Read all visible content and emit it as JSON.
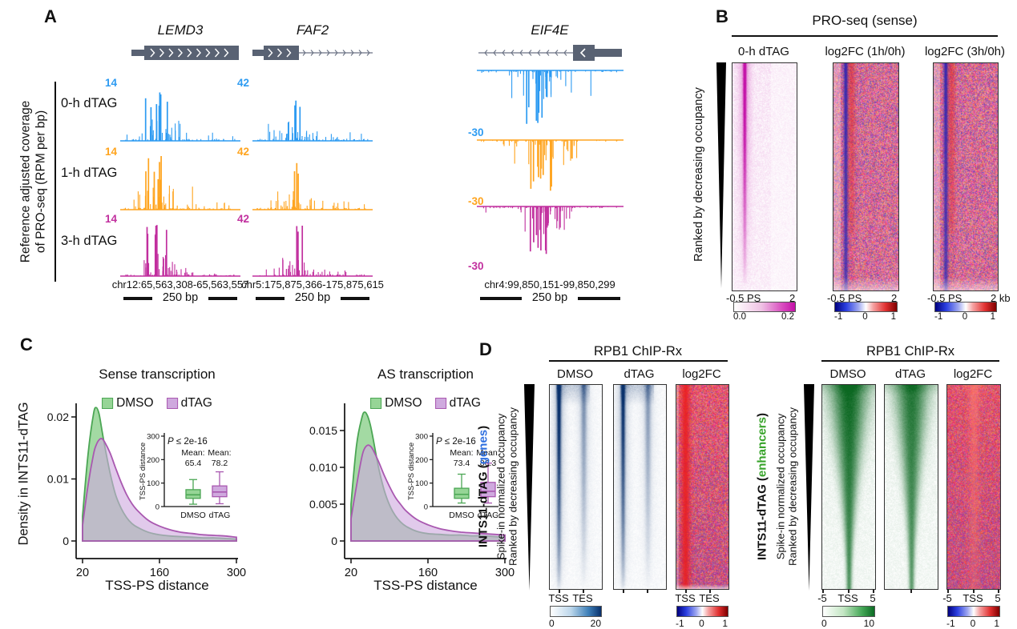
{
  "colors": {
    "track_blue": "#2D9BF2",
    "track_orange": "#FFA41E",
    "track_magenta": "#C12F9E",
    "gene_gray": "#596273",
    "heat_magenta": "#C411A8",
    "dmso_fill": "#96D596",
    "dmso_stroke": "#4BA654",
    "dtag_fill": "#CFA9DE",
    "dtag_stroke": "#A958B0",
    "genes_blue": "#2E6FE0",
    "enhancers_green": "#37A32A"
  },
  "figure": {
    "panel_a": {
      "label": "A",
      "y_axis_label": "Reference adjusted coverage\nof PRO-seq (RPM per bp)",
      "row_labels": [
        "0-h dTAG",
        "1-h dTAG",
        "3-h dTAG"
      ],
      "genes": [
        {
          "name": "LEMD3",
          "scale_label": "14",
          "coords": "chr12:65,563,308-65,563,557",
          "scale_bar": "250 bp"
        },
        {
          "name": "FAF2",
          "scale_label": "42",
          "coords": "chr5:175,875,366-175,875,615",
          "scale_bar": "250 bp"
        },
        {
          "name": "EIF4E",
          "scale_label": "-30",
          "coords": "chr4:99,850,151-99,850,299",
          "scale_bar": "250 bp"
        }
      ]
    },
    "panel_b": {
      "label": "B",
      "title": "PRO-seq (sense)",
      "side_label": "Ranked by decreasing occupancy",
      "columns": [
        "0-h dTAG",
        "log2FC (1h/0h)",
        "log2FC (3h/0h)"
      ],
      "x_left": [
        "-0.5 PS",
        "-0.5 PS",
        "-0.5 PS"
      ],
      "x_right": [
        "2",
        "2",
        "2 kb"
      ],
      "cbar1": {
        "min": "0.0",
        "max": "0.2"
      },
      "cbar_div": [
        "-1",
        "0",
        "1"
      ]
    },
    "panel_c": {
      "label": "C",
      "y_axis_label": "Density in INTS11-dTAG",
      "x_axis_label": "TSS-PS distance",
      "legend": [
        "DMSO",
        "dTAG"
      ],
      "plots": [
        {
          "title": "Sense transcription",
          "y_ticks": [
            "0",
            "0.01",
            "0.02"
          ],
          "y_tick_vals": [
            0,
            0.01,
            0.02
          ],
          "x_ticks": [
            "20",
            "160",
            "300"
          ],
          "x_tick_vals": [
            20,
            160,
            300
          ],
          "inset": {
            "y_label": "TSS-PS distance",
            "y_ticks": [
              "0",
              "100",
              "200",
              "300"
            ],
            "y_tick_vals": [
              0,
              100,
              200,
              300
            ],
            "p_italic": "P",
            "p_rest": " ≤ 2e-16",
            "mean_word": "Mean:",
            "means": [
              "65.4",
              "78.2"
            ],
            "categories": [
              "DMSO",
              "dTAG"
            ]
          }
        },
        {
          "title": "AS transcription",
          "y_ticks": [
            "0",
            "0.005",
            "0.010",
            "0.015"
          ],
          "y_tick_vals": [
            0,
            0.005,
            0.01,
            0.015
          ],
          "x_ticks": [
            "20",
            "160",
            "300"
          ],
          "x_tick_vals": [
            20,
            160,
            300
          ],
          "inset": {
            "y_label": "TSS-PS distance",
            "y_ticks": [
              "0",
              "100",
              "200",
              "300"
            ],
            "y_tick_vals": [
              0,
              100,
              200,
              300
            ],
            "p_italic": "P",
            "p_rest": " ≤ 2e-16",
            "mean_word": "Mean:",
            "means": [
              "73.4",
              "86.3"
            ],
            "categories": [
              "DMSO",
              "dTAG"
            ]
          }
        }
      ]
    },
    "panel_d": {
      "label": "D",
      "groups": [
        {
          "title": "RPB1 ChIP-Rx",
          "prefix": "INTS11-dTAG (",
          "target": "genes",
          "suffix": ")",
          "occupancy_label": "Spike-in normalized occupancy",
          "rank_label": "Ranked by decreasing occupancy",
          "columns": [
            "DMSO",
            "dTAG",
            "log2FC"
          ],
          "x_labels": [
            "TSS",
            "TES"
          ],
          "cbar_main": {
            "min": "0",
            "max": "20",
            "scheme": "blue"
          },
          "cbar_fc": [
            "-1",
            "0",
            "1"
          ]
        },
        {
          "title": "RPB1 ChIP-Rx",
          "prefix": "INTS11-dTAG (",
          "target": "enhancers",
          "suffix": ")",
          "occupancy_label": "Spike-in normalized occupancy",
          "rank_label": "Ranked by decreasing occupancy",
          "columns": [
            "DMSO",
            "dTAG",
            "log2FC"
          ],
          "x_labels": [
            "-5",
            "TSS",
            "5"
          ],
          "cbar_main": {
            "min": "0",
            "max": "10",
            "scheme": "green"
          },
          "cbar_fc": [
            "-1",
            "0",
            "1"
          ]
        }
      ]
    }
  },
  "chart_data": [
    {
      "id": "proseq_example_tracks",
      "type": "area",
      "title": "Reference adjusted coverage of PRO-seq (RPM per bp)",
      "rows": [
        "0-h dTAG",
        "1-h dTAG",
        "3-h dTAG"
      ],
      "genes": [
        {
          "name": "LEMD3",
          "ymax": 14,
          "direction": "up",
          "region": "chr12:65,563,308-65,563,557",
          "scale_bar_bp": 250,
          "clusters": [
            [
              0.3,
              0.045,
              7,
              0.55,
              1.0
            ],
            [
              0.35,
              0.1,
              24,
              0.06,
              0.45
            ],
            [
              0.56,
              0.17,
              16,
              0.02,
              0.16
            ]
          ]
        },
        {
          "name": "FAF2",
          "ymax": 42,
          "direction": "up",
          "region": "chr5:175,875,366-175,875,615",
          "scale_bar_bp": 250,
          "clusters": [
            [
              0.38,
              0.018,
              3,
              0.6,
              1.0
            ],
            [
              0.3,
              0.09,
              18,
              0.05,
              0.35
            ],
            [
              0.6,
              0.2,
              18,
              0.02,
              0.18
            ]
          ]
        },
        {
          "name": "EIF4E",
          "ymin": -30,
          "direction": "down",
          "region": "chr4:99,850,151-99,850,299",
          "scale_bar_bp": 250,
          "clusters": [
            [
              0.43,
              0.05,
              9,
              0.45,
              1.0
            ],
            [
              0.5,
              0.12,
              20,
              0.08,
              0.5
            ],
            [
              0.3,
              0.18,
              12,
              0.02,
              0.12
            ]
          ]
        }
      ]
    },
    {
      "id": "sense_density",
      "type": "area",
      "title": "Sense transcription",
      "xlabel": "TSS-PS distance",
      "ylabel": "Density in INTS11-dTAG",
      "xlim": [
        20,
        300
      ],
      "ylim": [
        0,
        0.022
      ],
      "x": [
        20,
        30,
        40,
        45,
        50,
        55,
        60,
        70,
        80,
        90,
        100,
        110,
        120,
        140,
        160,
        180,
        200,
        220,
        240,
        260,
        280,
        300
      ],
      "series": [
        {
          "name": "DMSO",
          "values": [
            0.004,
            0.014,
            0.0205,
            0.0215,
            0.0205,
            0.018,
            0.0155,
            0.011,
            0.0075,
            0.0053,
            0.0038,
            0.0028,
            0.0022,
            0.0014,
            0.001,
            0.0008,
            0.0007,
            0.0006,
            0.0005,
            0.0005,
            0.0004,
            0.0003
          ]
        },
        {
          "name": "dTAG",
          "values": [
            0.0025,
            0.009,
            0.014,
            0.0155,
            0.0163,
            0.0165,
            0.016,
            0.0142,
            0.0118,
            0.0095,
            0.0075,
            0.006,
            0.0049,
            0.0033,
            0.0024,
            0.0018,
            0.0014,
            0.0012,
            0.001,
            0.0009,
            0.0008,
            0.0006
          ]
        }
      ]
    },
    {
      "id": "as_density",
      "type": "area",
      "title": "AS transcription",
      "xlabel": "TSS-PS distance",
      "ylabel": "Density in INTS11-dTAG",
      "xlim": [
        20,
        300
      ],
      "ylim": [
        0,
        0.0175
      ],
      "x": [
        20,
        30,
        40,
        45,
        50,
        55,
        60,
        70,
        80,
        90,
        100,
        110,
        120,
        140,
        160,
        180,
        200,
        220,
        240,
        260,
        280,
        300
      ],
      "series": [
        {
          "name": "DMSO",
          "values": [
            0.005,
            0.013,
            0.0168,
            0.0175,
            0.017,
            0.0158,
            0.014,
            0.01,
            0.007,
            0.0049,
            0.0035,
            0.0026,
            0.002,
            0.0013,
            0.001,
            0.0009,
            0.0008,
            0.0008,
            0.0007,
            0.0007,
            0.0006,
            0.0005
          ]
        },
        {
          "name": "dTAG",
          "values": [
            0.003,
            0.0075,
            0.0115,
            0.0126,
            0.013,
            0.0129,
            0.0124,
            0.0108,
            0.009,
            0.0074,
            0.006,
            0.005,
            0.0041,
            0.0029,
            0.0022,
            0.0017,
            0.0014,
            0.0012,
            0.0011,
            0.001,
            0.0009,
            0.0008
          ]
        }
      ]
    },
    {
      "id": "sense_inset_boxplot",
      "type": "boxplot",
      "p_value": "P ≤ 2e-16",
      "ylim": [
        0,
        300
      ],
      "ylabel": "TSS-PS distance",
      "categories": [
        "DMSO",
        "dTAG"
      ],
      "stats": [
        {
          "whislo": 10,
          "q1": 35,
          "med": 50,
          "q3": 72,
          "whishi": 115,
          "mean": 65.4
        },
        {
          "whislo": 12,
          "q1": 42,
          "med": 62,
          "q3": 88,
          "whishi": 148,
          "mean": 78.2
        }
      ]
    },
    {
      "id": "as_inset_boxplot",
      "type": "boxplot",
      "p_value": "P ≤ 2e-16",
      "ylim": [
        0,
        300
      ],
      "ylabel": "TSS-PS distance",
      "categories": [
        "DMSO",
        "dTAG"
      ],
      "stats": [
        {
          "whislo": 15,
          "q1": 35,
          "med": 52,
          "q3": 78,
          "whishi": 138,
          "mean": 73.4
        },
        {
          "whislo": 15,
          "q1": 42,
          "med": 65,
          "q3": 103,
          "whishi": 185,
          "mean": 86.3
        }
      ]
    },
    {
      "id": "proseq_sense_heatmaps",
      "type": "heatmap",
      "title": "PRO-seq (sense)",
      "side_label": "Ranked by decreasing occupancy",
      "maps": [
        {
          "name": "0-h dTAG",
          "x_axis": [
            "-0.5",
            "PS",
            "2"
          ],
          "color_scale": [
            0.0,
            0.2
          ],
          "scheme": "white-magenta"
        },
        {
          "name": "log2FC (1h/0h)",
          "x_axis": [
            "-0.5",
            "PS",
            "2"
          ],
          "color_scale": [
            -1,
            1
          ],
          "scheme": "blue-white-red"
        },
        {
          "name": "log2FC (3h/0h)",
          "x_axis": [
            "-0.5",
            "PS",
            "2 kb"
          ],
          "color_scale": [
            -1,
            1
          ],
          "scheme": "blue-white-red"
        }
      ]
    },
    {
      "id": "rpb1_chip_genes",
      "type": "heatmap",
      "title": "RPB1 ChIP-Rx",
      "target": "genes",
      "x_labels": [
        "TSS",
        "TES"
      ],
      "maps": [
        {
          "name": "DMSO",
          "color_scale": [
            0,
            20
          ],
          "scheme": "white-blue"
        },
        {
          "name": "dTAG",
          "color_scale": [
            0,
            20
          ],
          "scheme": "white-blue"
        },
        {
          "name": "log2FC",
          "color_scale": [
            -1,
            1
          ],
          "scheme": "blue-white-red"
        }
      ]
    },
    {
      "id": "rpb1_chip_enhancers",
      "type": "heatmap",
      "title": "RPB1 ChIP-Rx",
      "target": "enhancers",
      "x_labels": [
        "-5",
        "TSS",
        "5"
      ],
      "maps": [
        {
          "name": "DMSO",
          "color_scale": [
            0,
            10
          ],
          "scheme": "white-green"
        },
        {
          "name": "dTAG",
          "color_scale": [
            0,
            10
          ],
          "scheme": "white-green"
        },
        {
          "name": "log2FC",
          "color_scale": [
            -1,
            1
          ],
          "scheme": "blue-white-red"
        }
      ]
    }
  ]
}
